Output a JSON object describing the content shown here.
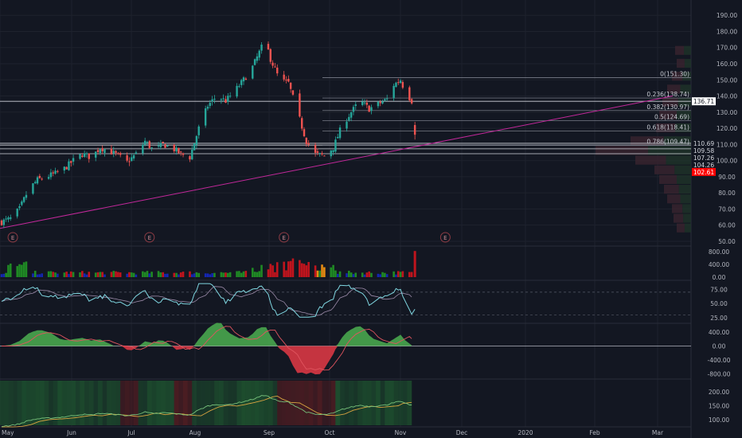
{
  "colors": {
    "background": "#131722",
    "axis_text": "#b2b5be",
    "grid": "#1e222d",
    "up": "#26a69a",
    "down": "#ef5350",
    "trendline": "#c2289a",
    "fib": "#8a8e99",
    "hline": "#d1d4dc",
    "rsi": "#7fd6e0",
    "rsi_ma": "#9b8aa8",
    "vol_blue": "#1426b3",
    "vol_green": "#1f8a24",
    "vol_red": "#c0141d",
    "vol_orange": "#e58b12",
    "macd_pos": "#4caf50",
    "macd_neg": "#e53945",
    "trend_fill_green": "#1d4d2e",
    "trend_fill_red": "#4d1d22",
    "ma_green": "#78c27b",
    "ma_orange": "#d9a441",
    "last_price_bg": "#ff0000",
    "earnings": "#8c3b44"
  },
  "chart_data": {
    "type": "candlestick",
    "x_ticks": [
      "May",
      "Jun",
      "Jul",
      "Aug",
      "Sep",
      "Oct",
      "Nov",
      "Dec",
      "2020",
      "Feb",
      "Mar"
    ],
    "price_ticks": [
      "190.00",
      "180.00",
      "170.00",
      "160.00",
      "150.00",
      "140.00",
      "130.00",
      "120.00",
      "110.00",
      "100.00",
      "90.00",
      "80.00",
      "70.00",
      "60.00",
      "50.00"
    ],
    "price_range": [
      48,
      197
    ],
    "price_path": [
      [
        0,
        62
      ],
      [
        4,
        64
      ],
      [
        8,
        70
      ],
      [
        12,
        82
      ],
      [
        16,
        88
      ],
      [
        20,
        90
      ],
      [
        24,
        92
      ],
      [
        28,
        95
      ],
      [
        32,
        100
      ],
      [
        36,
        104
      ],
      [
        40,
        102
      ],
      [
        44,
        108
      ],
      [
        48,
        106
      ],
      [
        52,
        103
      ],
      [
        56,
        99
      ],
      [
        60,
        104
      ],
      [
        64,
        112
      ],
      [
        68,
        106
      ],
      [
        72,
        110
      ],
      [
        76,
        108
      ],
      [
        80,
        104
      ],
      [
        84,
        102
      ],
      [
        88,
        120
      ],
      [
        92,
        134
      ],
      [
        96,
        140
      ],
      [
        100,
        137
      ],
      [
        104,
        143
      ],
      [
        108,
        150
      ],
      [
        112,
        158
      ],
      [
        116,
        170
      ],
      [
        118,
        173
      ],
      [
        120,
        163
      ],
      [
        124,
        150
      ],
      [
        128,
        148
      ],
      [
        132,
        130
      ],
      [
        136,
        112
      ],
      [
        140,
        104
      ],
      [
        144,
        103
      ],
      [
        148,
        108
      ],
      [
        152,
        122
      ],
      [
        156,
        130
      ],
      [
        160,
        137
      ],
      [
        164,
        132
      ],
      [
        168,
        135
      ],
      [
        172,
        138
      ],
      [
        174,
        146
      ],
      [
        176,
        148
      ],
      [
        178,
        150
      ],
      [
        180,
        143
      ],
      [
        183,
        137
      ]
    ],
    "price_labels": [
      {
        "text": "136.71",
        "price": 136.71,
        "style": "white"
      },
      {
        "text": "110.69",
        "price": 110.69,
        "style": "plain"
      },
      {
        "text": "109.58",
        "price": 109.58,
        "style": "plain"
      },
      {
        "text": "107.26",
        "price": 107.26,
        "style": "plain"
      },
      {
        "text": "104.26",
        "price": 104.26,
        "style": "plain"
      },
      {
        "text": "102.61",
        "price": 102.61,
        "style": "red"
      }
    ],
    "fib_levels": [
      {
        "label": "0(151.30)",
        "price": 151.3
      },
      {
        "label": "0.236(138.74)",
        "price": 138.74
      },
      {
        "label": "0.382(130.97)",
        "price": 130.97
      },
      {
        "label": "0.5(124.69)",
        "price": 124.69
      },
      {
        "label": "0.618(118.41)",
        "price": 118.41
      },
      {
        "label": "0.786(109.47)",
        "price": 109.47
      }
    ],
    "horizontal_lines": [
      136.71,
      110.69,
      109.58,
      107.26,
      104.26
    ],
    "earnings_marker": "E",
    "earnings_days": [
      5,
      66,
      126,
      198
    ],
    "volume_ticks": [
      "800.00",
      "400.00",
      "0.00"
    ],
    "rsi_ticks": [
      "75.00",
      "50.00",
      "25.00"
    ],
    "macd_ticks": [
      "400.00",
      "0.00",
      "-400.00",
      "-800.00"
    ],
    "trend_ticks": [
      "200.00",
      "150.00",
      "100.00"
    ]
  }
}
